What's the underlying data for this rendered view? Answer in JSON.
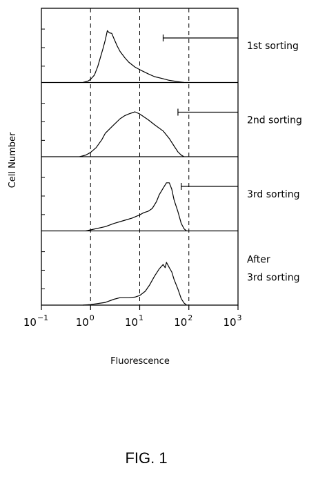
{
  "figure": {
    "caption": "FIG. 1"
  },
  "chart_data": {
    "type": "line",
    "x_scale": "log",
    "xlim": [
      0.1,
      1000
    ],
    "xlabel": "Fluorescence",
    "ylabel": "Cell Number",
    "x_ticks": [
      {
        "value": 0.1,
        "base": "10",
        "exponent": "−1"
      },
      {
        "value": 1,
        "base": "10",
        "exponent": "0"
      },
      {
        "value": 10,
        "base": "10",
        "exponent": "1"
      },
      {
        "value": 100,
        "base": "10",
        "exponent": "2"
      },
      {
        "value": 1000,
        "base": "10",
        "exponent": "3"
      }
    ],
    "reference_lines_x": [
      1,
      10,
      100
    ],
    "grid": false,
    "panels": [
      {
        "label_lines": [
          "1st sorting"
        ],
        "gate": [
          30,
          100
        ],
        "ylim": [
          0,
          1
        ],
        "points": [
          [
            0.7,
            0
          ],
          [
            0.9,
            0.03
          ],
          [
            1.0,
            0.06
          ],
          [
            1.2,
            0.14
          ],
          [
            1.4,
            0.3
          ],
          [
            1.6,
            0.48
          ],
          [
            1.8,
            0.64
          ],
          [
            2.0,
            0.8
          ],
          [
            2.2,
            0.97
          ],
          [
            2.4,
            0.93
          ],
          [
            2.7,
            0.92
          ],
          [
            3.0,
            0.82
          ],
          [
            3.5,
            0.68
          ],
          [
            4.0,
            0.58
          ],
          [
            5.0,
            0.46
          ],
          [
            6.0,
            0.38
          ],
          [
            8.0,
            0.29
          ],
          [
            10,
            0.24
          ],
          [
            15,
            0.16
          ],
          [
            20,
            0.11
          ],
          [
            30,
            0.07
          ],
          [
            40,
            0.04
          ],
          [
            60,
            0.015
          ],
          [
            80,
            0
          ]
        ]
      },
      {
        "label_lines": [
          "2nd sorting"
        ],
        "gate": [
          60,
          100
        ],
        "ylim": [
          0,
          1
        ],
        "points": [
          [
            0.6,
            0
          ],
          [
            0.8,
            0.03
          ],
          [
            1.0,
            0.08
          ],
          [
            1.3,
            0.17
          ],
          [
            1.7,
            0.32
          ],
          [
            2.0,
            0.44
          ],
          [
            3.0,
            0.6
          ],
          [
            4.0,
            0.71
          ],
          [
            5.0,
            0.77
          ],
          [
            6.0,
            0.8
          ],
          [
            8.0,
            0.84
          ],
          [
            10,
            0.8
          ],
          [
            15,
            0.69
          ],
          [
            20,
            0.6
          ],
          [
            30,
            0.48
          ],
          [
            40,
            0.34
          ],
          [
            50,
            0.2
          ],
          [
            60,
            0.09
          ],
          [
            70,
            0.03
          ],
          [
            80,
            0
          ]
        ]
      },
      {
        "label_lines": [
          "3rd sorting"
        ],
        "gate": [
          70,
          100
        ],
        "ylim": [
          0,
          1
        ],
        "points": [
          [
            0.8,
            0
          ],
          [
            1.0,
            0.02
          ],
          [
            2.0,
            0.08
          ],
          [
            3.0,
            0.14
          ],
          [
            5.0,
            0.2
          ],
          [
            7.0,
            0.24
          ],
          [
            10,
            0.3
          ],
          [
            12,
            0.34
          ],
          [
            15,
            0.37
          ],
          [
            18,
            0.42
          ],
          [
            22,
            0.55
          ],
          [
            25,
            0.68
          ],
          [
            30,
            0.8
          ],
          [
            35,
            0.9
          ],
          [
            40,
            0.9
          ],
          [
            45,
            0.78
          ],
          [
            50,
            0.58
          ],
          [
            60,
            0.36
          ],
          [
            70,
            0.14
          ],
          [
            80,
            0.04
          ],
          [
            90,
            0
          ]
        ]
      },
      {
        "label_lines": [
          "After",
          "3rd sorting"
        ],
        "gate": null,
        "ylim": [
          0,
          1
        ],
        "points": [
          [
            0.7,
            0
          ],
          [
            1.0,
            0.01
          ],
          [
            2.0,
            0.05
          ],
          [
            3.0,
            0.11
          ],
          [
            4.0,
            0.14
          ],
          [
            6.0,
            0.14
          ],
          [
            8.0,
            0.15
          ],
          [
            10,
            0.18
          ],
          [
            13,
            0.26
          ],
          [
            16,
            0.38
          ],
          [
            20,
            0.54
          ],
          [
            25,
            0.68
          ],
          [
            30,
            0.76
          ],
          [
            33,
            0.7
          ],
          [
            35,
            0.8
          ],
          [
            40,
            0.7
          ],
          [
            45,
            0.62
          ],
          [
            50,
            0.48
          ],
          [
            60,
            0.3
          ],
          [
            70,
            0.12
          ],
          [
            80,
            0.04
          ],
          [
            90,
            0
          ]
        ]
      }
    ]
  }
}
